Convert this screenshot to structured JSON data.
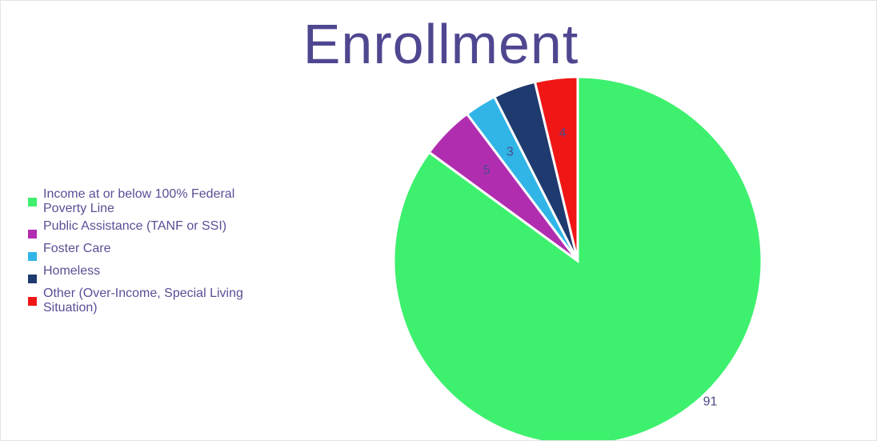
{
  "chart_data": {
    "type": "pie",
    "title": "Enrollment",
    "series": [
      {
        "name": "Income at or below 100% Federal Poverty Line",
        "value": 91,
        "label": "91",
        "color": "#3df06e"
      },
      {
        "name": "Public Assistance (TANF or SSI)",
        "value": 5,
        "label": "5",
        "color": "#b12db0"
      },
      {
        "name": "Foster Care",
        "value": 3,
        "label": "3",
        "color": "#30b5e6"
      },
      {
        "name": "Homeless",
        "value": 4,
        "label": "",
        "color": "#1f3a6e"
      },
      {
        "name": "Other (Over-Income, Special Living Situation)",
        "value": 4,
        "label": "4",
        "color": "#f01616"
      }
    ],
    "start_angle_deg": 0,
    "direction": "clockwise",
    "legend_position": "left"
  }
}
